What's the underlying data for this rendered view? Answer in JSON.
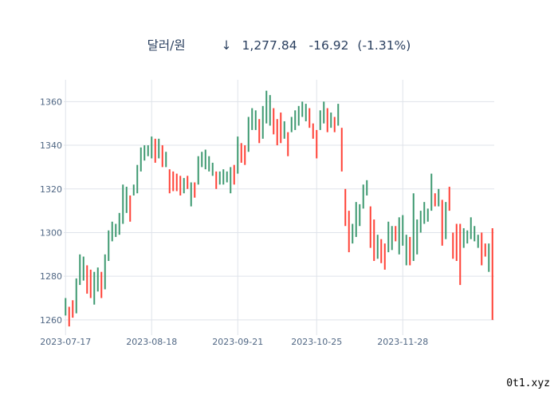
{
  "header": {
    "name": "달러/원",
    "arrow": "↓",
    "price": "1,277.84",
    "change": "-16.92",
    "change_pct": "(-1.31%)"
  },
  "watermark": "0t1.xyz",
  "colors": {
    "up": "#3d9970",
    "down": "#ff4136",
    "grid": "#dfe3ea",
    "text": "#2a3f5f"
  },
  "chart_data": {
    "type": "ohlc",
    "x_ticks": [
      "2023-07-17",
      "2023-08-18",
      "2023-09-21",
      "2023-10-25",
      "2023-11-28"
    ],
    "y_ticks": [
      1260,
      1280,
      1300,
      1320,
      1340,
      1360
    ],
    "ylim": [
      1253,
      1370
    ],
    "grid": true,
    "bars": [
      {
        "date": "2023-07-17",
        "h": 1270,
        "l": 1262,
        "dir": "up"
      },
      {
        "date": "2023-07-18",
        "h": 1266,
        "l": 1257,
        "dir": "down"
      },
      {
        "date": "2023-07-19",
        "h": 1269,
        "l": 1261,
        "dir": "down"
      },
      {
        "date": "2023-07-20",
        "h": 1279,
        "l": 1263,
        "dir": "up"
      },
      {
        "date": "2023-07-21",
        "h": 1290,
        "l": 1276,
        "dir": "up"
      },
      {
        "date": "2023-07-24",
        "h": 1289,
        "l": 1278,
        "dir": "up"
      },
      {
        "date": "2023-07-25",
        "h": 1285,
        "l": 1272,
        "dir": "down"
      },
      {
        "date": "2023-07-26",
        "h": 1283,
        "l": 1270,
        "dir": "down"
      },
      {
        "date": "2023-07-27",
        "h": 1282,
        "l": 1267,
        "dir": "up"
      },
      {
        "date": "2023-07-28",
        "h": 1284,
        "l": 1273,
        "dir": "up"
      },
      {
        "date": "2023-07-31",
        "h": 1282,
        "l": 1270,
        "dir": "down"
      },
      {
        "date": "2023-08-01",
        "h": 1290,
        "l": 1274,
        "dir": "up"
      },
      {
        "date": "2023-08-02",
        "h": 1301,
        "l": 1287,
        "dir": "up"
      },
      {
        "date": "2023-08-03",
        "h": 1305,
        "l": 1296,
        "dir": "up"
      },
      {
        "date": "2023-08-04",
        "h": 1304,
        "l": 1298,
        "dir": "up"
      },
      {
        "date": "2023-08-07",
        "h": 1309,
        "l": 1299,
        "dir": "up"
      },
      {
        "date": "2023-08-08",
        "h": 1322,
        "l": 1304,
        "dir": "up"
      },
      {
        "date": "2023-08-09",
        "h": 1321,
        "l": 1309,
        "dir": "up"
      },
      {
        "date": "2023-08-10",
        "h": 1317,
        "l": 1305,
        "dir": "down"
      },
      {
        "date": "2023-08-11",
        "h": 1322,
        "l": 1317,
        "dir": "up"
      },
      {
        "date": "2023-08-14",
        "h": 1331,
        "l": 1318,
        "dir": "up"
      },
      {
        "date": "2023-08-15",
        "h": 1339,
        "l": 1328,
        "dir": "up"
      },
      {
        "date": "2023-08-16",
        "h": 1340,
        "l": 1333,
        "dir": "up"
      },
      {
        "date": "2023-08-17",
        "h": 1340,
        "l": 1335,
        "dir": "up"
      },
      {
        "date": "2023-08-18",
        "h": 1344,
        "l": 1334,
        "dir": "up"
      },
      {
        "date": "2023-08-21",
        "h": 1343,
        "l": 1332,
        "dir": "down"
      },
      {
        "date": "2023-08-22",
        "h": 1343,
        "l": 1334,
        "dir": "up"
      },
      {
        "date": "2023-08-23",
        "h": 1340,
        "l": 1330,
        "dir": "down"
      },
      {
        "date": "2023-08-24",
        "h": 1337,
        "l": 1330,
        "dir": "up"
      },
      {
        "date": "2023-08-25",
        "h": 1329,
        "l": 1318,
        "dir": "down"
      },
      {
        "date": "2023-08-28",
        "h": 1328,
        "l": 1319,
        "dir": "down"
      },
      {
        "date": "2023-08-29",
        "h": 1327,
        "l": 1319,
        "dir": "down"
      },
      {
        "date": "2023-08-30",
        "h": 1326,
        "l": 1317,
        "dir": "down"
      },
      {
        "date": "2023-08-31",
        "h": 1325,
        "l": 1318,
        "dir": "up"
      },
      {
        "date": "2023-09-01",
        "h": 1326,
        "l": 1320,
        "dir": "down"
      },
      {
        "date": "2023-09-04",
        "h": 1323,
        "l": 1312,
        "dir": "up"
      },
      {
        "date": "2023-09-05",
        "h": 1323,
        "l": 1316,
        "dir": "down"
      },
      {
        "date": "2023-09-06",
        "h": 1335,
        "l": 1322,
        "dir": "up"
      },
      {
        "date": "2023-09-07",
        "h": 1337,
        "l": 1330,
        "dir": "up"
      },
      {
        "date": "2023-09-08",
        "h": 1338,
        "l": 1329,
        "dir": "up"
      },
      {
        "date": "2023-09-11",
        "h": 1335,
        "l": 1328,
        "dir": "up"
      },
      {
        "date": "2023-09-12",
        "h": 1332,
        "l": 1326,
        "dir": "up"
      },
      {
        "date": "2023-09-13",
        "h": 1328,
        "l": 1320,
        "dir": "down"
      },
      {
        "date": "2023-09-14",
        "h": 1328,
        "l": 1322,
        "dir": "up"
      },
      {
        "date": "2023-09-15",
        "h": 1329,
        "l": 1322,
        "dir": "up"
      },
      {
        "date": "2023-09-18",
        "h": 1328,
        "l": 1323,
        "dir": "up"
      },
      {
        "date": "2023-09-19",
        "h": 1330,
        "l": 1318,
        "dir": "up"
      },
      {
        "date": "2023-09-20",
        "h": 1331,
        "l": 1322,
        "dir": "down"
      },
      {
        "date": "2023-09-21",
        "h": 1344,
        "l": 1327,
        "dir": "up"
      },
      {
        "date": "2023-09-22",
        "h": 1341,
        "l": 1332,
        "dir": "down"
      },
      {
        "date": "2023-09-25",
        "h": 1340,
        "l": 1331,
        "dir": "down"
      },
      {
        "date": "2023-09-26",
        "h": 1353,
        "l": 1337,
        "dir": "up"
      },
      {
        "date": "2023-09-27",
        "h": 1357,
        "l": 1347,
        "dir": "up"
      },
      {
        "date": "2023-09-28",
        "h": 1356,
        "l": 1347,
        "dir": "up"
      },
      {
        "date": "2023-10-02",
        "h": 1352,
        "l": 1341,
        "dir": "down"
      },
      {
        "date": "2023-10-03",
        "h": 1358,
        "l": 1343,
        "dir": "up"
      },
      {
        "date": "2023-10-04",
        "h": 1365,
        "l": 1350,
        "dir": "up"
      },
      {
        "date": "2023-10-05",
        "h": 1363,
        "l": 1349,
        "dir": "up"
      },
      {
        "date": "2023-10-06",
        "h": 1357,
        "l": 1345,
        "dir": "down"
      },
      {
        "date": "2023-10-10",
        "h": 1352,
        "l": 1340,
        "dir": "down"
      },
      {
        "date": "2023-10-11",
        "h": 1355,
        "l": 1341,
        "dir": "down"
      },
      {
        "date": "2023-10-12",
        "h": 1351,
        "l": 1343,
        "dir": "up"
      },
      {
        "date": "2023-10-13",
        "h": 1346,
        "l": 1335,
        "dir": "down"
      },
      {
        "date": "2023-10-16",
        "h": 1353,
        "l": 1346,
        "dir": "up"
      },
      {
        "date": "2023-10-17",
        "h": 1356,
        "l": 1347,
        "dir": "up"
      },
      {
        "date": "2023-10-18",
        "h": 1358,
        "l": 1349,
        "dir": "up"
      },
      {
        "date": "2023-10-19",
        "h": 1360,
        "l": 1353,
        "dir": "up"
      },
      {
        "date": "2023-10-20",
        "h": 1359,
        "l": 1351,
        "dir": "up"
      },
      {
        "date": "2023-10-23",
        "h": 1357,
        "l": 1348,
        "dir": "down"
      },
      {
        "date": "2023-10-24",
        "h": 1350,
        "l": 1343,
        "dir": "down"
      },
      {
        "date": "2023-10-25",
        "h": 1347,
        "l": 1334,
        "dir": "down"
      },
      {
        "date": "2023-10-26",
        "h": 1356,
        "l": 1347,
        "dir": "up"
      },
      {
        "date": "2023-10-27",
        "h": 1360,
        "l": 1350,
        "dir": "up"
      },
      {
        "date": "2023-10-30",
        "h": 1357,
        "l": 1346,
        "dir": "down"
      },
      {
        "date": "2023-10-31",
        "h": 1355,
        "l": 1348,
        "dir": "up"
      },
      {
        "date": "2023-11-01",
        "h": 1353,
        "l": 1346,
        "dir": "down"
      },
      {
        "date": "2023-11-02",
        "h": 1359,
        "l": 1349,
        "dir": "up"
      },
      {
        "date": "2023-11-03",
        "h": 1348,
        "l": 1328,
        "dir": "down"
      },
      {
        "date": "2023-11-06",
        "h": 1320,
        "l": 1303,
        "dir": "down"
      },
      {
        "date": "2023-11-07",
        "h": 1310,
        "l": 1291,
        "dir": "down"
      },
      {
        "date": "2023-11-08",
        "h": 1304,
        "l": 1295,
        "dir": "up"
      },
      {
        "date": "2023-11-09",
        "h": 1314,
        "l": 1298,
        "dir": "up"
      },
      {
        "date": "2023-11-10",
        "h": 1313,
        "l": 1303,
        "dir": "up"
      },
      {
        "date": "2023-11-13",
        "h": 1322,
        "l": 1311,
        "dir": "up"
      },
      {
        "date": "2023-11-14",
        "h": 1324,
        "l": 1317,
        "dir": "up"
      },
      {
        "date": "2023-11-15",
        "h": 1312,
        "l": 1293,
        "dir": "down"
      },
      {
        "date": "2023-11-16",
        "h": 1306,
        "l": 1287,
        "dir": "down"
      },
      {
        "date": "2023-11-17",
        "h": 1299,
        "l": 1288,
        "dir": "up"
      },
      {
        "date": "2023-11-20",
        "h": 1297,
        "l": 1286,
        "dir": "down"
      },
      {
        "date": "2023-11-21",
        "h": 1295,
        "l": 1283,
        "dir": "down"
      },
      {
        "date": "2023-11-22",
        "h": 1305,
        "l": 1291,
        "dir": "up"
      },
      {
        "date": "2023-11-23",
        "h": 1303,
        "l": 1292,
        "dir": "up"
      },
      {
        "date": "2023-11-24",
        "h": 1303,
        "l": 1296,
        "dir": "down"
      },
      {
        "date": "2023-11-27",
        "h": 1307,
        "l": 1290,
        "dir": "up"
      },
      {
        "date": "2023-11-28",
        "h": 1308,
        "l": 1294,
        "dir": "up"
      },
      {
        "date": "2023-11-29",
        "h": 1299,
        "l": 1285,
        "dir": "up"
      },
      {
        "date": "2023-11-30",
        "h": 1298,
        "l": 1285,
        "dir": "down"
      },
      {
        "date": "2023-12-01",
        "h": 1318,
        "l": 1287,
        "dir": "up"
      },
      {
        "date": "2023-12-04",
        "h": 1306,
        "l": 1290,
        "dir": "up"
      },
      {
        "date": "2023-12-05",
        "h": 1310,
        "l": 1300,
        "dir": "up"
      },
      {
        "date": "2023-12-06",
        "h": 1314,
        "l": 1304,
        "dir": "up"
      },
      {
        "date": "2023-12-07",
        "h": 1311,
        "l": 1305,
        "dir": "up"
      },
      {
        "date": "2023-12-08",
        "h": 1327,
        "l": 1310,
        "dir": "up"
      },
      {
        "date": "2023-12-11",
        "h": 1318,
        "l": 1312,
        "dir": "down"
      },
      {
        "date": "2023-12-12",
        "h": 1320,
        "l": 1312,
        "dir": "up"
      },
      {
        "date": "2023-12-13",
        "h": 1315,
        "l": 1294,
        "dir": "down"
      },
      {
        "date": "2023-12-14",
        "h": 1314,
        "l": 1297,
        "dir": "up"
      },
      {
        "date": "2023-12-15",
        "h": 1321,
        "l": 1310,
        "dir": "down"
      },
      {
        "date": "2023-12-18",
        "h": 1300,
        "l": 1288,
        "dir": "down"
      },
      {
        "date": "2023-12-19",
        "h": 1304,
        "l": 1287,
        "dir": "down"
      },
      {
        "date": "2023-12-20",
        "h": 1304,
        "l": 1276,
        "dir": "down"
      },
      {
        "date": "2023-12-21",
        "h": 1302,
        "l": 1293,
        "dir": "up"
      },
      {
        "date": "2023-12-22",
        "h": 1301,
        "l": 1295,
        "dir": "up"
      },
      {
        "date": "2023-12-26",
        "h": 1307,
        "l": 1297,
        "dir": "up"
      },
      {
        "date": "2023-12-27",
        "h": 1303,
        "l": 1296,
        "dir": "up"
      },
      {
        "date": "2023-12-28",
        "h": 1299,
        "l": 1293,
        "dir": "up"
      },
      {
        "date": "2023-12-29",
        "h": 1300,
        "l": 1285,
        "dir": "down"
      },
      {
        "date": "2024-01-02",
        "h": 1295,
        "l": 1289,
        "dir": "down"
      },
      {
        "date": "2024-01-03",
        "h": 1295,
        "l": 1282,
        "dir": "up"
      },
      {
        "date": "2024-01-04",
        "h": 1302,
        "l": 1260,
        "dir": "down"
      }
    ]
  }
}
